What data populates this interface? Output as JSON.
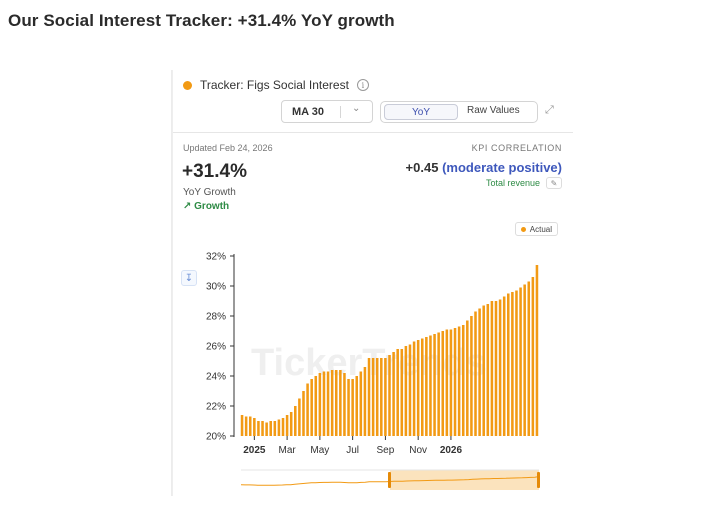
{
  "page_title": "Our Social Interest Tracker: +31.4% YoY growth",
  "card": {
    "tracker_label": "Tracker: Figs Social Interest",
    "info_icon": "info-icon",
    "ma_select": {
      "value": "MA 30",
      "separator": "|",
      "chevron": "⌵"
    },
    "toggle": {
      "active": "YoY",
      "inactive": "Raw Values"
    },
    "expand_icon": "expand-icon",
    "updated": "Updated Feb 24, 2026",
    "big_value": "+31.4%",
    "big_value_label": "YoY Growth",
    "growth_label": "↗ Growth",
    "kpi": {
      "title": "KPI CORRELATION",
      "value": "+0.45",
      "qualifier": "(moderate positive)",
      "metric": "Total revenue",
      "edit_icon": "pencil-icon"
    },
    "legend": "Actual",
    "download_icon": "download-icon",
    "watermark": "TickerTrends"
  },
  "colors": {
    "accent": "#f29a14",
    "positive": "#2e8b45",
    "link": "#3e58bc"
  },
  "chart_data": {
    "type": "bar",
    "series": [
      {
        "name": "Actual",
        "values": [
          21.4,
          21.3,
          21.3,
          21.2,
          21.0,
          21.0,
          20.9,
          21.0,
          21.0,
          21.1,
          21.2,
          21.4,
          21.6,
          22.0,
          22.5,
          23.0,
          23.5,
          23.8,
          24.0,
          24.2,
          24.3,
          24.3,
          24.4,
          24.4,
          24.4,
          24.2,
          23.8,
          23.8,
          24.0,
          24.3,
          24.6,
          25.2,
          25.2,
          25.2,
          25.2,
          25.2,
          25.4,
          25.6,
          25.8,
          25.8,
          26.0,
          26.1,
          26.3,
          26.4,
          26.5,
          26.6,
          26.7,
          26.8,
          26.9,
          27.0,
          27.1,
          27.1,
          27.2,
          27.3,
          27.4,
          27.7,
          28.0,
          28.3,
          28.5,
          28.7,
          28.8,
          29.0,
          29.0,
          29.1,
          29.3,
          29.5,
          29.6,
          29.7,
          29.9,
          30.1,
          30.3,
          30.6,
          31.4
        ]
      }
    ],
    "x_ticks": [
      {
        "label": "2025",
        "index": 3,
        "bold": true
      },
      {
        "label": "Mar",
        "index": 11,
        "bold": false
      },
      {
        "label": "May",
        "index": 19,
        "bold": false
      },
      {
        "label": "Jul",
        "index": 27,
        "bold": false
      },
      {
        "label": "Sep",
        "index": 35,
        "bold": false
      },
      {
        "label": "Nov",
        "index": 43,
        "bold": false
      },
      {
        "label": "2026",
        "index": 51,
        "bold": true
      }
    ],
    "y_ticks": [
      "20%",
      "22%",
      "24%",
      "26%",
      "28%",
      "30%",
      "32%"
    ],
    "ylim": [
      20,
      32
    ],
    "grid": false,
    "legend": "top-right",
    "range_selector": {
      "selected_fraction": [
        0.5,
        1.0
      ]
    }
  }
}
